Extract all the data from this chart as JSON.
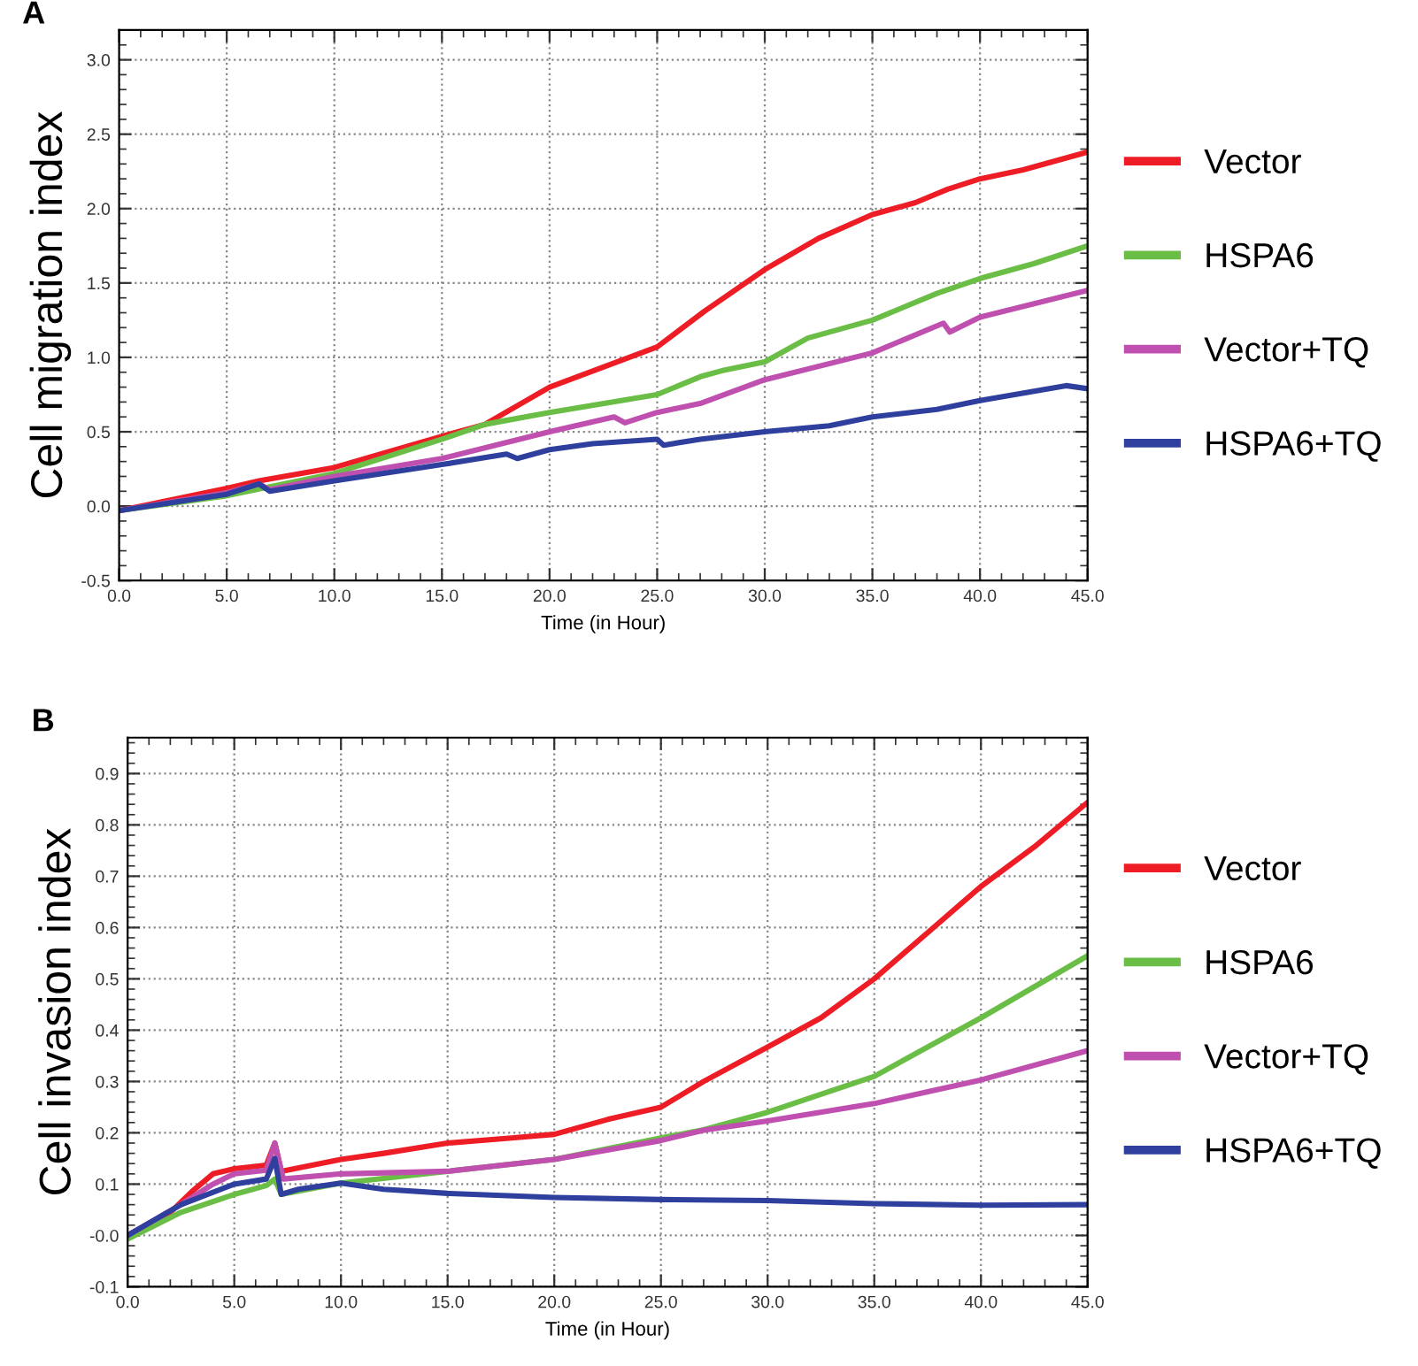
{
  "chart_data": [
    {
      "type": "line",
      "title": "A",
      "xlabel": "Time (in Hour)",
      "ylabel": "Cell migration index",
      "xlim": [
        0,
        45
      ],
      "ylim": [
        -0.5,
        3.2
      ],
      "xticks": [
        {
          "value": 0,
          "label": "0.0"
        },
        {
          "value": 5,
          "label": "5.0"
        },
        {
          "value": 10,
          "label": "10.0"
        },
        {
          "value": 15,
          "label": "15.0"
        },
        {
          "value": 20,
          "label": "20.0"
        },
        {
          "value": 25,
          "label": "25.0"
        },
        {
          "value": 30,
          "label": "30.0"
        },
        {
          "value": 35,
          "label": "35.0"
        },
        {
          "value": 40,
          "label": "40.0"
        },
        {
          "value": 45,
          "label": "45.0"
        }
      ],
      "yticks": [
        -0.5,
        {
          "value": 0,
          "label": "0.0"
        },
        0.5,
        {
          "value": 1,
          "label": "1.0"
        },
        1.5,
        {
          "value": 2,
          "label": "2.0"
        },
        2.5,
        {
          "value": 3,
          "label": "3.0"
        }
      ],
      "grid": true,
      "legend": "right",
      "marker": "none",
      "line_style": "solid",
      "series": [
        {
          "name": "Vector",
          "color": "#ee1c25",
          "x": [
            0,
            5,
            6.5,
            10,
            15,
            17,
            20,
            25,
            27.2,
            30,
            32.5,
            35,
            37,
            38.5,
            40,
            42,
            45
          ],
          "values": [
            -0.03,
            0.12,
            0.17,
            0.26,
            0.47,
            0.55,
            0.8,
            1.07,
            1.31,
            1.59,
            1.8,
            1.96,
            2.04,
            2.13,
            2.2,
            2.26,
            2.38
          ]
        },
        {
          "name": "HSPA6",
          "color": "#6abd45",
          "x": [
            0,
            5,
            10,
            15,
            17,
            20,
            25,
            27,
            28,
            30,
            32,
            35,
            38,
            40,
            42.5,
            45
          ],
          "values": [
            -0.03,
            0.07,
            0.22,
            0.45,
            0.55,
            0.63,
            0.75,
            0.87,
            0.91,
            0.97,
            1.13,
            1.25,
            1.43,
            1.53,
            1.63,
            1.75
          ]
        },
        {
          "name": "Vector+TQ",
          "color": "#c050b0",
          "x": [
            0,
            5,
            6.5,
            7,
            10,
            15,
            20,
            23,
            23.5,
            25,
            27,
            30,
            35,
            38.3,
            38.6,
            40,
            45
          ],
          "values": [
            -0.03,
            0.09,
            0.15,
            0.11,
            0.2,
            0.32,
            0.5,
            0.6,
            0.56,
            0.63,
            0.69,
            0.85,
            1.03,
            1.23,
            1.17,
            1.27,
            1.45
          ]
        },
        {
          "name": "HSPA6+TQ",
          "color": "#2e3f9e",
          "x": [
            0,
            5,
            6.5,
            7,
            10,
            15,
            18,
            18.5,
            20,
            22,
            25,
            25.3,
            27,
            30,
            33,
            35,
            38,
            40,
            44,
            45
          ],
          "values": [
            -0.03,
            0.08,
            0.15,
            0.1,
            0.17,
            0.28,
            0.35,
            0.32,
            0.38,
            0.42,
            0.45,
            0.41,
            0.45,
            0.5,
            0.54,
            0.6,
            0.65,
            0.71,
            0.81,
            0.79
          ]
        }
      ]
    },
    {
      "type": "line",
      "title": "B",
      "xlabel": "Time (in Hour)",
      "ylabel": "Cell invasion index",
      "xlim": [
        0,
        45
      ],
      "ylim": [
        -0.1,
        0.97
      ],
      "xticks": [
        {
          "value": 0,
          "label": "0.0"
        },
        {
          "value": 5,
          "label": "5.0"
        },
        {
          "value": 10,
          "label": "10.0"
        },
        {
          "value": 15,
          "label": "15.0"
        },
        {
          "value": 20,
          "label": "20.0"
        },
        {
          "value": 25,
          "label": "25.0"
        },
        {
          "value": 30,
          "label": "30.0"
        },
        {
          "value": 35,
          "label": "35.0"
        },
        {
          "value": 40,
          "label": "40.0"
        },
        {
          "value": 45,
          "label": "45.0"
        }
      ],
      "yticks": [
        -0.1,
        {
          "value": 0,
          "label": "-0.0"
        },
        0.1,
        0.2,
        0.3,
        0.4,
        0.5,
        0.6,
        0.7,
        0.8,
        0.9
      ],
      "grid": true,
      "legend": "right",
      "marker": "none",
      "line_style": "solid",
      "series": [
        {
          "name": "Vector",
          "color": "#ee1c25",
          "x": [
            0,
            2,
            3,
            4,
            5,
            6.5,
            6.9,
            7.2,
            10,
            12,
            15,
            18,
            20,
            22.5,
            25,
            27,
            30,
            32.5,
            35,
            37.5,
            40,
            42.5,
            45
          ],
          "values": [
            0,
            0.045,
            0.085,
            0.12,
            0.13,
            0.137,
            0.18,
            0.125,
            0.148,
            0.16,
            0.18,
            0.19,
            0.197,
            0.226,
            0.25,
            0.3,
            0.367,
            0.424,
            0.5,
            0.59,
            0.68,
            0.757,
            0.844
          ]
        },
        {
          "name": "HSPA6",
          "color": "#6abd45",
          "x": [
            0,
            2.5,
            5,
            6.5,
            6.9,
            7.2,
            10,
            15,
            20,
            25,
            27,
            30,
            35,
            40,
            45
          ],
          "values": [
            -0.007,
            0.045,
            0.08,
            0.097,
            0.11,
            0.08,
            0.102,
            0.125,
            0.148,
            0.19,
            0.206,
            0.24,
            0.31,
            0.424,
            0.545
          ]
        },
        {
          "name": "Vector+TQ",
          "color": "#c050b0",
          "x": [
            0,
            2.5,
            4,
            5,
            6.5,
            6.9,
            7.3,
            10,
            15,
            20,
            25,
            27,
            30,
            35,
            40,
            45
          ],
          "values": [
            0,
            0.06,
            0.1,
            0.12,
            0.127,
            0.18,
            0.11,
            0.12,
            0.125,
            0.148,
            0.185,
            0.205,
            0.223,
            0.257,
            0.303,
            0.36
          ]
        },
        {
          "name": "HSPA6+TQ",
          "color": "#2e3f9e",
          "x": [
            0,
            2.5,
            5,
            6.5,
            6.9,
            7.2,
            8,
            10,
            12,
            15,
            20,
            25,
            30,
            35,
            40,
            45
          ],
          "values": [
            0,
            0.06,
            0.1,
            0.11,
            0.15,
            0.08,
            0.09,
            0.102,
            0.09,
            0.082,
            0.074,
            0.07,
            0.068,
            0.062,
            0.059,
            0.06
          ]
        }
      ]
    }
  ]
}
